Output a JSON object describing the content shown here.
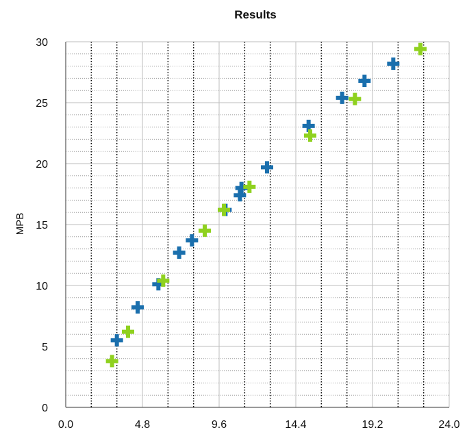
{
  "chart_data": {
    "type": "scatter",
    "title": "Results",
    "xlabel": "",
    "ylabel": "MPB",
    "xlim": [
      0,
      24
    ],
    "ylim": [
      0,
      30
    ],
    "x_ticks": [
      "0.0",
      "4.8",
      "9.6",
      "14.4",
      "19.2",
      "24.0"
    ],
    "y_ticks": [
      "0",
      "5",
      "10",
      "15",
      "20",
      "25",
      "30"
    ],
    "grid": true,
    "legend": "none",
    "series": [
      {
        "color": "#1a6fad",
        "marker": "plus",
        "points": [
          [
            3.2,
            5.5
          ],
          [
            4.5,
            8.2
          ],
          [
            5.8,
            10.1
          ],
          [
            7.1,
            12.7
          ],
          [
            7.9,
            13.7
          ],
          [
            10.0,
            16.2
          ],
          [
            10.9,
            17.4
          ],
          [
            11.0,
            18.0
          ],
          [
            12.6,
            19.7
          ],
          [
            15.2,
            23.1
          ],
          [
            17.3,
            25.4
          ],
          [
            18.7,
            26.8
          ],
          [
            20.5,
            28.2
          ]
        ]
      },
      {
        "color": "#8fd11f",
        "marker": "plus",
        "points": [
          [
            2.9,
            3.8
          ],
          [
            3.9,
            6.2
          ],
          [
            6.1,
            10.4
          ],
          [
            8.7,
            14.5
          ],
          [
            9.9,
            16.2
          ],
          [
            11.5,
            18.1
          ],
          [
            15.3,
            22.3
          ],
          [
            18.1,
            25.3
          ],
          [
            22.2,
            29.4
          ]
        ]
      }
    ]
  }
}
